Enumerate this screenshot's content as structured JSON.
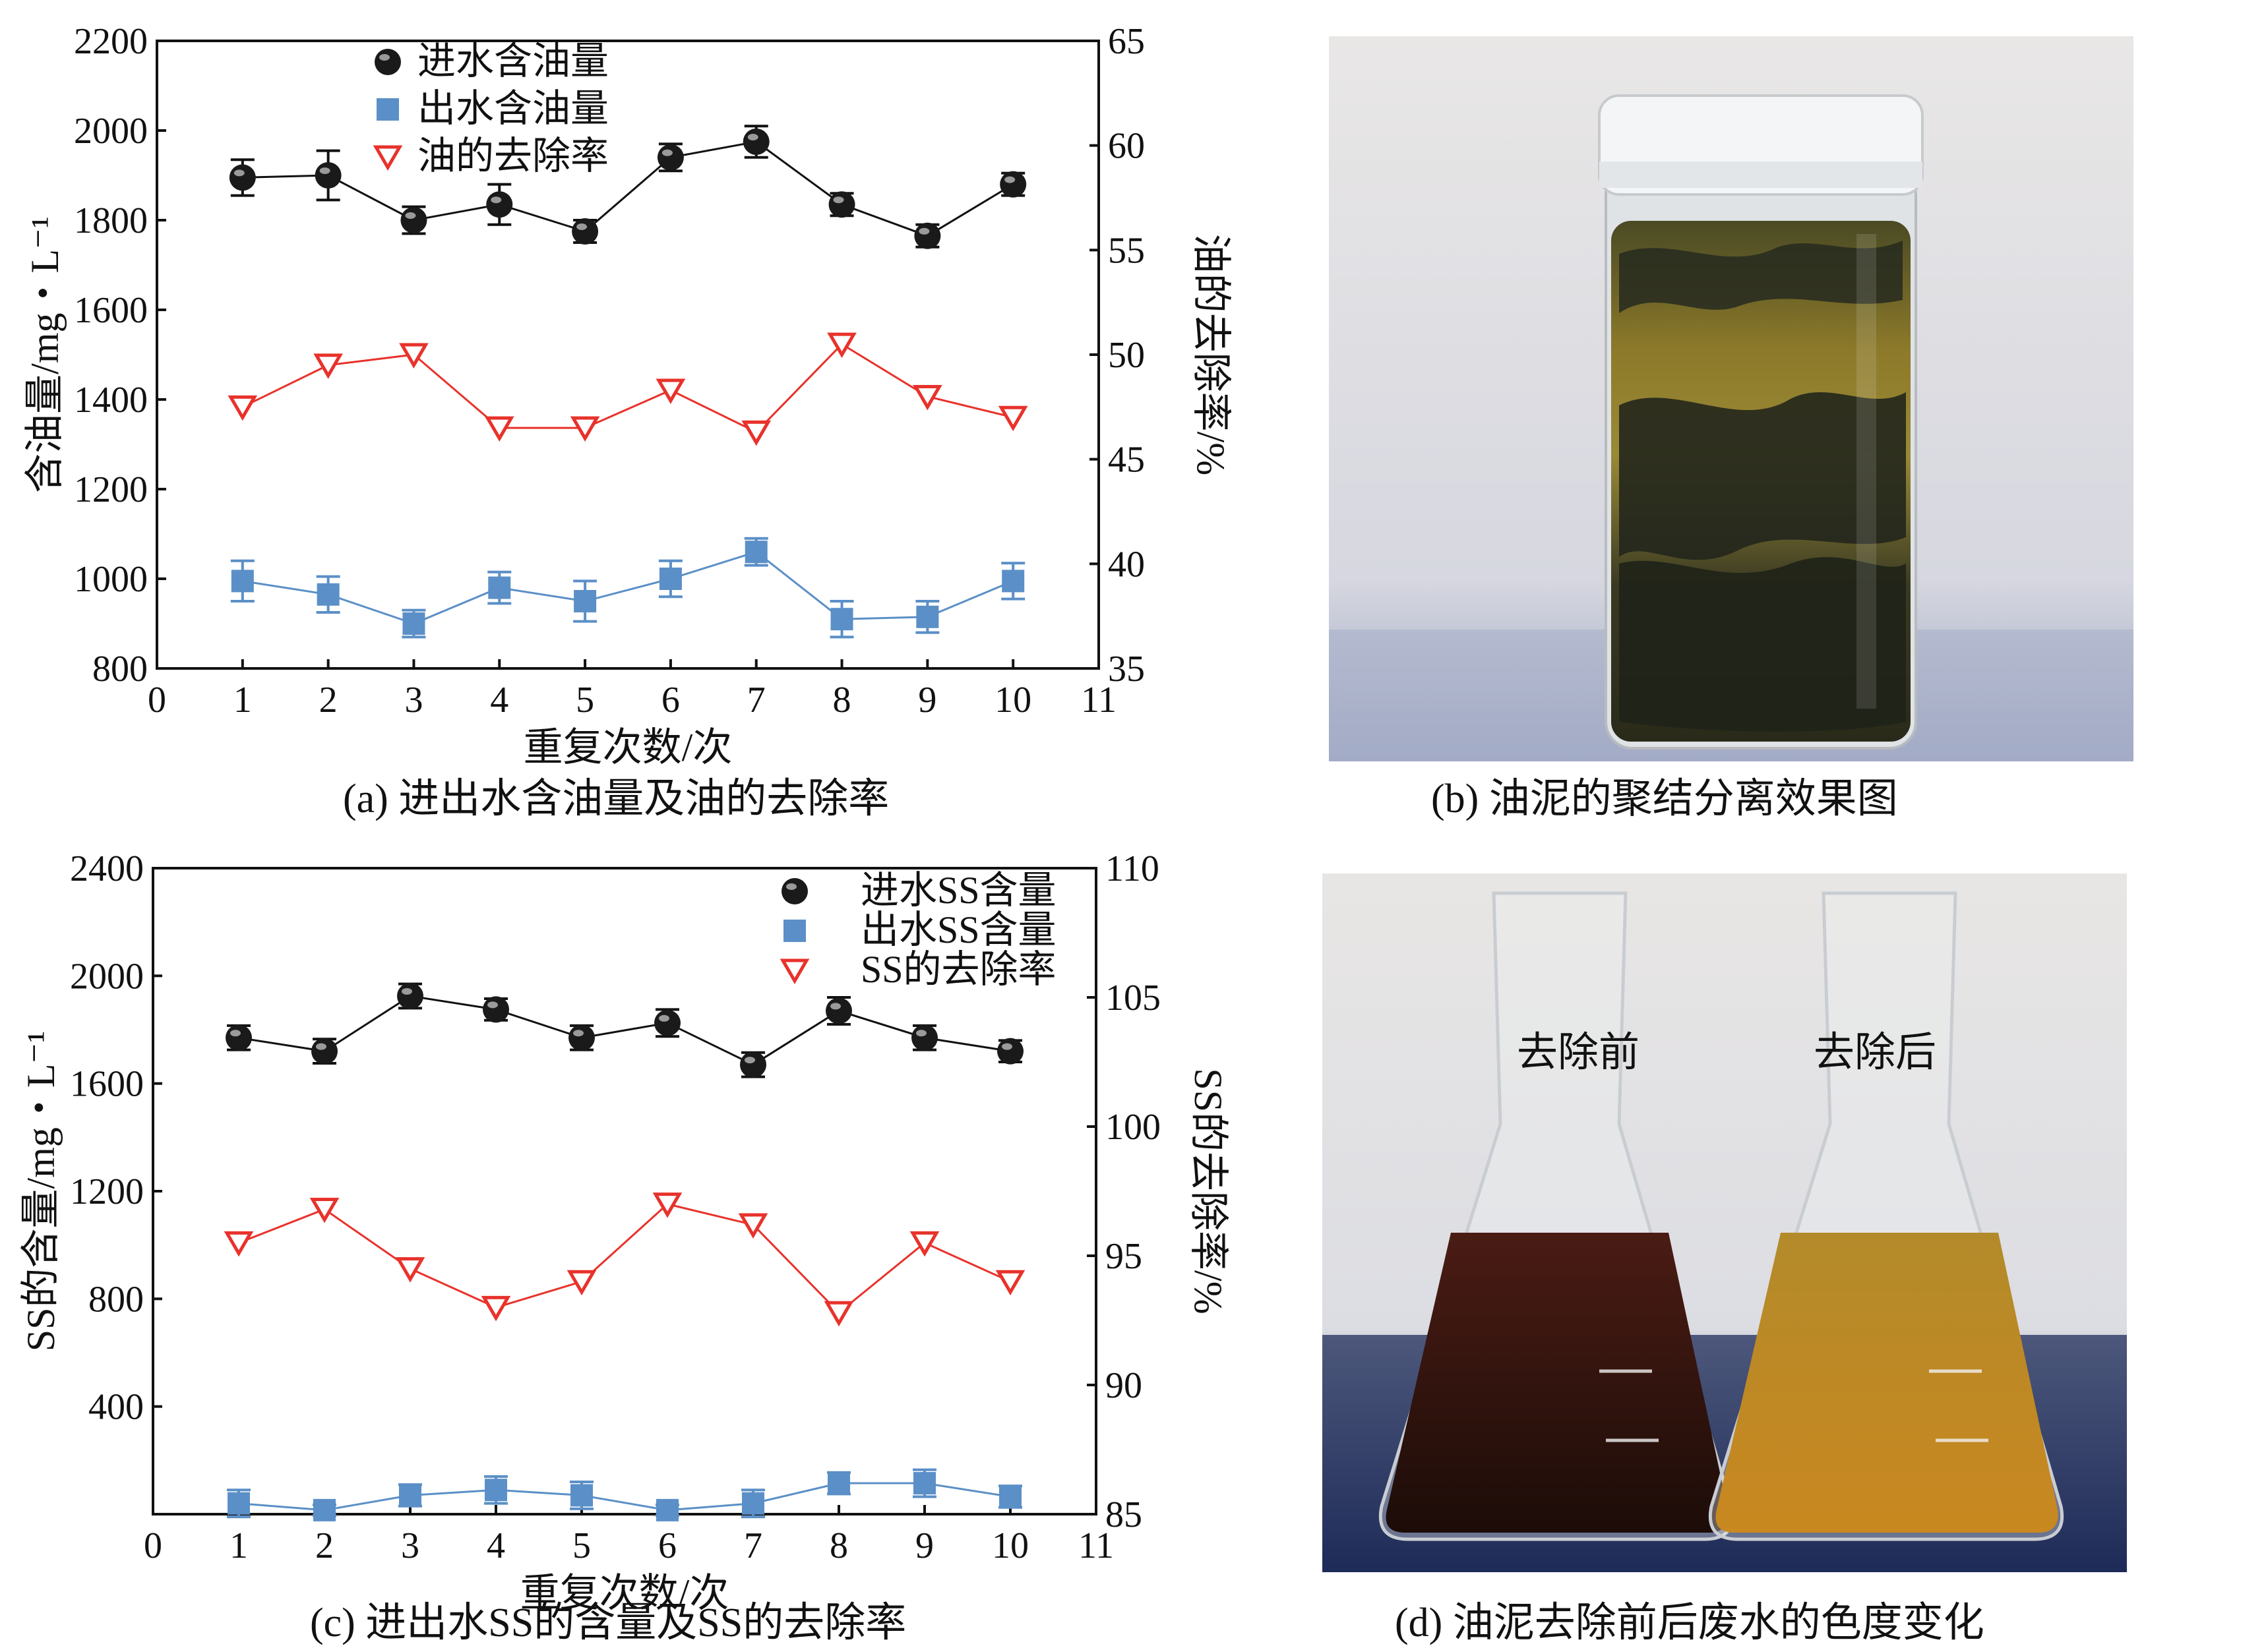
{
  "panels": {
    "a": {
      "caption": "(a) 进出水含油量及油的去除率",
      "chart_data": {
        "type": "line",
        "xlabel": "重复次数/次",
        "ylabel": "含油量/mg・L⁻¹",
        "y2label": "油的去除率/%",
        "xlim": [
          0,
          11
        ],
        "ylim": [
          800,
          2200
        ],
        "y2lim": [
          35,
          65
        ],
        "x_ticks": [
          "0",
          "1",
          "2",
          "3",
          "4",
          "5",
          "6",
          "7",
          "8",
          "9",
          "10",
          "11"
        ],
        "y_ticks": [
          "800",
          "1000",
          "1200",
          "1400",
          "1600",
          "1800",
          "2000",
          "2200"
        ],
        "y2_ticks": [
          "35",
          "40",
          "45",
          "50",
          "55",
          "60",
          "65"
        ],
        "legend_position": "top-left",
        "x": [
          1,
          2,
          3,
          4,
          5,
          6,
          7,
          8,
          9,
          10
        ],
        "series": [
          {
            "name": "进水含油量",
            "axis": "left",
            "marker": "ball",
            "color": "#111111",
            "values": [
              1895,
              1900,
              1800,
              1835,
              1775,
              1940,
              1975,
              1835,
              1765,
              1880
            ],
            "errors": [
              40,
              55,
              30,
              45,
              25,
              30,
              35,
              25,
              25,
              25
            ]
          },
          {
            "name": "出水含油量",
            "axis": "left",
            "marker": "square",
            "color": "#5b8fc7",
            "values": [
              995,
              965,
              900,
              980,
              950,
              1000,
              1060,
              910,
              915,
              995
            ],
            "errors": [
              45,
              40,
              30,
              35,
              45,
              40,
              30,
              40,
              35,
              40
            ]
          },
          {
            "name": "油的去除率",
            "axis": "right",
            "marker": "triangle-down",
            "color": "#e8322b",
            "values": [
              47.5,
              49.5,
              50.0,
              46.5,
              46.5,
              48.3,
              46.3,
              50.5,
              48.0,
              47.0
            ],
            "errors": []
          }
        ]
      }
    },
    "b": {
      "caption": "(b) 油泥的聚结分离效果图"
    },
    "c": {
      "caption": "(c) 进出水SS的含量及SS的去除率",
      "chart_data": {
        "type": "line",
        "xlabel": "重复次数/次",
        "ylabel": "SS的含量/mg・L⁻¹",
        "y2label": "SS的去除率/%",
        "xlim": [
          0,
          11
        ],
        "ylim": [
          0,
          2400
        ],
        "y2lim": [
          85,
          110
        ],
        "x_ticks": [
          "0",
          "1",
          "2",
          "3",
          "4",
          "5",
          "6",
          "7",
          "8",
          "9",
          "10",
          "11"
        ],
        "y_ticks": [
          "400",
          "800",
          "1200",
          "1600",
          "2000",
          "2400"
        ],
        "y2_ticks": [
          "85",
          "90",
          "95",
          "100",
          "105",
          "110"
        ],
        "legend_position": "top-right",
        "x": [
          1,
          2,
          3,
          4,
          5,
          6,
          7,
          8,
          9,
          10
        ],
        "series": [
          {
            "name": "进水SS含量",
            "axis": "left",
            "marker": "ball",
            "color": "#111111",
            "values": [
              1770,
              1720,
              1925,
              1875,
              1770,
              1825,
              1670,
              1870,
              1770,
              1720
            ],
            "errors": [
              45,
              45,
              45,
              40,
              45,
              50,
              45,
              50,
              45,
              40
            ]
          },
          {
            "name": "出水SS含量",
            "axis": "left",
            "marker": "square",
            "color": "#5b8fc7",
            "values": [
              40,
              15,
              70,
              90,
              70,
              15,
              40,
              115,
              115,
              65
            ],
            "errors": [
              50,
              20,
              40,
              50,
              50,
              20,
              50,
              40,
              50,
              40
            ]
          },
          {
            "name": "SS的去除率",
            "axis": "right",
            "marker": "triangle-down",
            "color": "#e8322b",
            "values": [
              95.5,
              96.8,
              94.5,
              93.0,
              94.0,
              97.0,
              96.2,
              92.8,
              95.5,
              94.0
            ],
            "errors": []
          }
        ]
      }
    },
    "d": {
      "caption": "(d) 油泥去除前后废水的色度变化",
      "label_before": "去除前",
      "label_after": "去除后"
    }
  }
}
